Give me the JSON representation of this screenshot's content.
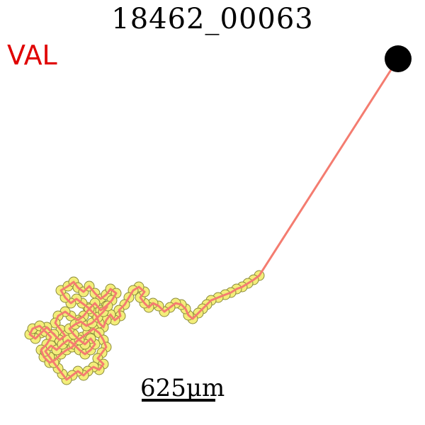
{
  "header": {
    "title": "18462_00063"
  },
  "label": {
    "text": "VAL",
    "color": "#e00000"
  },
  "scale": {
    "label": "625μm"
  },
  "colors": {
    "track_line": "#f47c70",
    "node_fill": "#f3ee7a",
    "node_stroke": "#8a8a3a",
    "endpoint": "#000000"
  },
  "icons": {
    "endpoint": "endpoint-disc-icon"
  }
}
